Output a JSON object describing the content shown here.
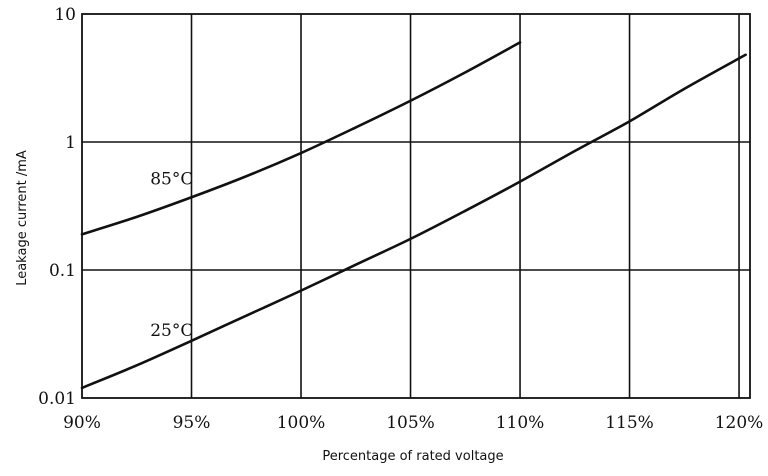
{
  "chart_data": {
    "type": "line",
    "title": "",
    "xlabel": "Percentage of rated voltage",
    "ylabel": "Leakage current /mA",
    "xlim": [
      90,
      120
    ],
    "ylim": [
      0.01,
      10
    ],
    "yscale": "log",
    "grid": true,
    "x_ticks": [
      90,
      95,
      100,
      105,
      110,
      115,
      120
    ],
    "x_tick_labels": [
      "90%",
      "95%",
      "100%",
      "105%",
      "110%",
      "115%",
      "120%"
    ],
    "y_ticks": [
      0.01,
      0.1,
      1,
      10
    ],
    "y_tick_labels": [
      "0.01",
      "0.1",
      "1",
      "10"
    ],
    "series": [
      {
        "name": "85°C",
        "x": [
          90,
          92.5,
          95,
          97.5,
          100,
          102.5,
          105,
          107.5,
          110
        ],
        "y": [
          0.19,
          0.26,
          0.37,
          0.54,
          0.82,
          1.3,
          2.1,
          3.5,
          6
        ]
      },
      {
        "name": "25°C",
        "x": [
          90,
          92.5,
          95,
          97.5,
          100,
          102.5,
          105,
          107.5,
          110,
          112.5,
          115,
          117.5,
          120.3
        ],
        "y": [
          0.012,
          0.018,
          0.028,
          0.044,
          0.069,
          0.11,
          0.175,
          0.29,
          0.49,
          0.85,
          1.45,
          2.6,
          4.8
        ]
      }
    ]
  }
}
